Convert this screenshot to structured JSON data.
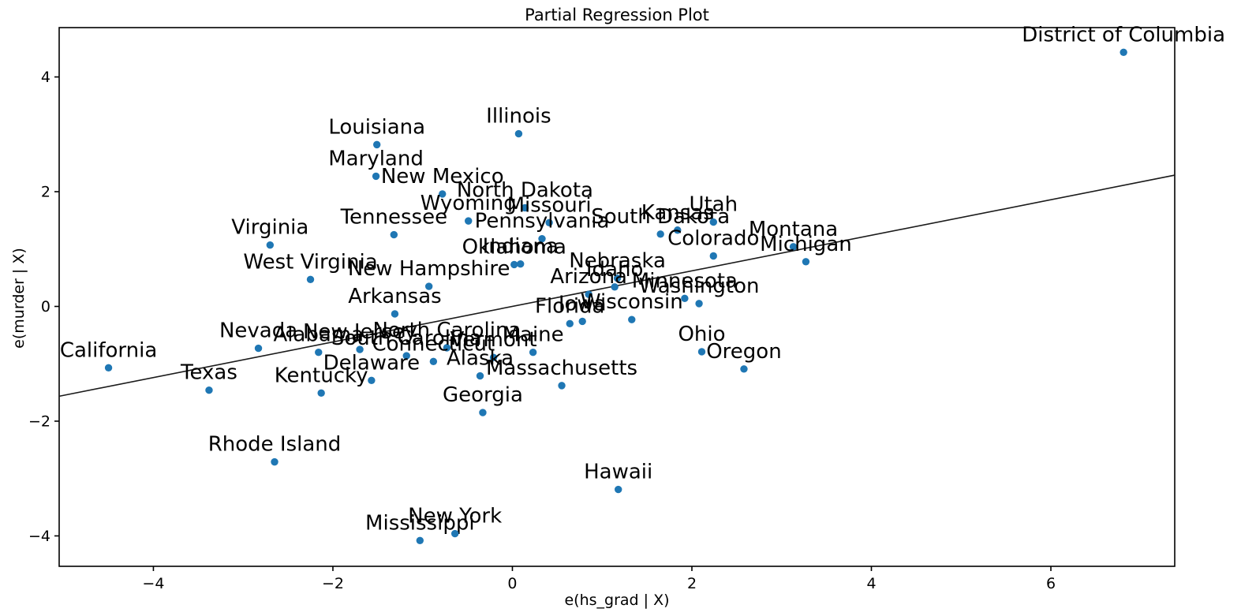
{
  "chart_data": {
    "type": "scatter",
    "title": "Partial Regression Plot",
    "xlabel": "e(hs_grad | X)",
    "ylabel": "e(murder | X)",
    "xlim": [
      -5.05,
      7.38
    ],
    "ylim": [
      -4.53,
      4.86
    ],
    "x_ticks": [
      {
        "v": -4,
        "label": "−4"
      },
      {
        "v": -2,
        "label": "−2"
      },
      {
        "v": 0,
        "label": "0"
      },
      {
        "v": 2,
        "label": "2"
      },
      {
        "v": 4,
        "label": "4"
      },
      {
        "v": 6,
        "label": "6"
      }
    ],
    "y_ticks": [
      {
        "v": 4,
        "label": "4"
      },
      {
        "v": 2,
        "label": "2"
      },
      {
        "v": 0,
        "label": "0"
      },
      {
        "v": -2,
        "label": "−2"
      },
      {
        "v": -4,
        "label": "−4"
      }
    ],
    "grid": false,
    "legend": "none",
    "point_color": "#1f77b4",
    "line_color": "#1a1a1a",
    "regression_line": {
      "slope": 0.31,
      "intercept": 0.0
    },
    "points": [
      {
        "label": "District of Columbia",
        "x": 6.81,
        "y": 4.43
      },
      {
        "label": "Illinois",
        "x": 0.07,
        "y": 3.01
      },
      {
        "label": "Louisiana",
        "x": -1.51,
        "y": 2.82
      },
      {
        "label": "Maryland",
        "x": -1.52,
        "y": 2.27
      },
      {
        "label": "New Mexico",
        "x": -0.78,
        "y": 1.96
      },
      {
        "label": "North Dakota",
        "x": 0.14,
        "y": 1.72
      },
      {
        "label": "Wyoming",
        "x": -0.49,
        "y": 1.49
      },
      {
        "label": "Missouri",
        "x": 0.41,
        "y": 1.46
      },
      {
        "label": "Tennessee",
        "x": -1.32,
        "y": 1.25
      },
      {
        "label": "Pennsylvania",
        "x": 0.33,
        "y": 1.18
      },
      {
        "label": "South Dakota",
        "x": 1.65,
        "y": 1.26
      },
      {
        "label": "Kansas",
        "x": 1.84,
        "y": 1.33
      },
      {
        "label": "Utah",
        "x": 2.24,
        "y": 1.47
      },
      {
        "label": "Virginia",
        "x": -2.7,
        "y": 1.07
      },
      {
        "label": "Montana",
        "x": 3.13,
        "y": 1.04
      },
      {
        "label": "Colorado",
        "x": 2.24,
        "y": 0.88
      },
      {
        "label": "Michigan",
        "x": 3.27,
        "y": 0.78
      },
      {
        "label": "West Virginia",
        "x": -2.25,
        "y": 0.47
      },
      {
        "label": "Oklahoma",
        "x": 0.02,
        "y": 0.73
      },
      {
        "label": "Indiana",
        "x": 0.09,
        "y": 0.74
      },
      {
        "label": "Nebraska",
        "x": 1.17,
        "y": 0.49
      },
      {
        "label": "Idaho",
        "x": 1.14,
        "y": 0.34
      },
      {
        "label": "New Hampshire",
        "x": -0.93,
        "y": 0.35
      },
      {
        "label": "Arizona",
        "x": 0.85,
        "y": 0.21
      },
      {
        "label": "Minnesota",
        "x": 1.92,
        "y": 0.14
      },
      {
        "label": "Washington",
        "x": 2.08,
        "y": 0.05
      },
      {
        "label": "Arkansas",
        "x": -1.31,
        "y": -0.13
      },
      {
        "label": "Iowa",
        "x": 0.78,
        "y": -0.26
      },
      {
        "label": "Florida",
        "x": 0.64,
        "y": -0.3
      },
      {
        "label": "Wisconsin",
        "x": 1.33,
        "y": -0.23
      },
      {
        "label": "Nevada",
        "x": -2.83,
        "y": -0.73
      },
      {
        "label": "Alabama",
        "x": -2.16,
        "y": -0.8
      },
      {
        "label": "New Jersey",
        "x": -1.7,
        "y": -0.75
      },
      {
        "label": "North Carolina",
        "x": -0.73,
        "y": -0.72
      },
      {
        "label": "South Carolina",
        "x": -1.18,
        "y": -0.86
      },
      {
        "label": "Connecticut",
        "x": -0.88,
        "y": -0.96
      },
      {
        "label": "Vermont",
        "x": -0.21,
        "y": -0.89
      },
      {
        "label": "Maine",
        "x": 0.23,
        "y": -0.8
      },
      {
        "label": "Delaware",
        "x": -1.57,
        "y": -1.29
      },
      {
        "label": "Alaska",
        "x": -0.36,
        "y": -1.21
      },
      {
        "label": "Massachusetts",
        "x": 0.55,
        "y": -1.38
      },
      {
        "label": "Ohio",
        "x": 2.11,
        "y": -0.79
      },
      {
        "label": "Oregon",
        "x": 2.58,
        "y": -1.09
      },
      {
        "label": "California",
        "x": -4.5,
        "y": -1.07
      },
      {
        "label": "Texas",
        "x": -3.38,
        "y": -1.46
      },
      {
        "label": "Kentucky",
        "x": -2.13,
        "y": -1.51
      },
      {
        "label": "Georgia",
        "x": -0.33,
        "y": -1.85
      },
      {
        "label": "Rhode Island",
        "x": -2.65,
        "y": -2.71
      },
      {
        "label": "Hawaii",
        "x": 1.18,
        "y": -3.19
      },
      {
        "label": "Mississippi",
        "x": -1.03,
        "y": -4.08
      },
      {
        "label": "New York",
        "x": -0.64,
        "y": -3.96
      }
    ]
  }
}
